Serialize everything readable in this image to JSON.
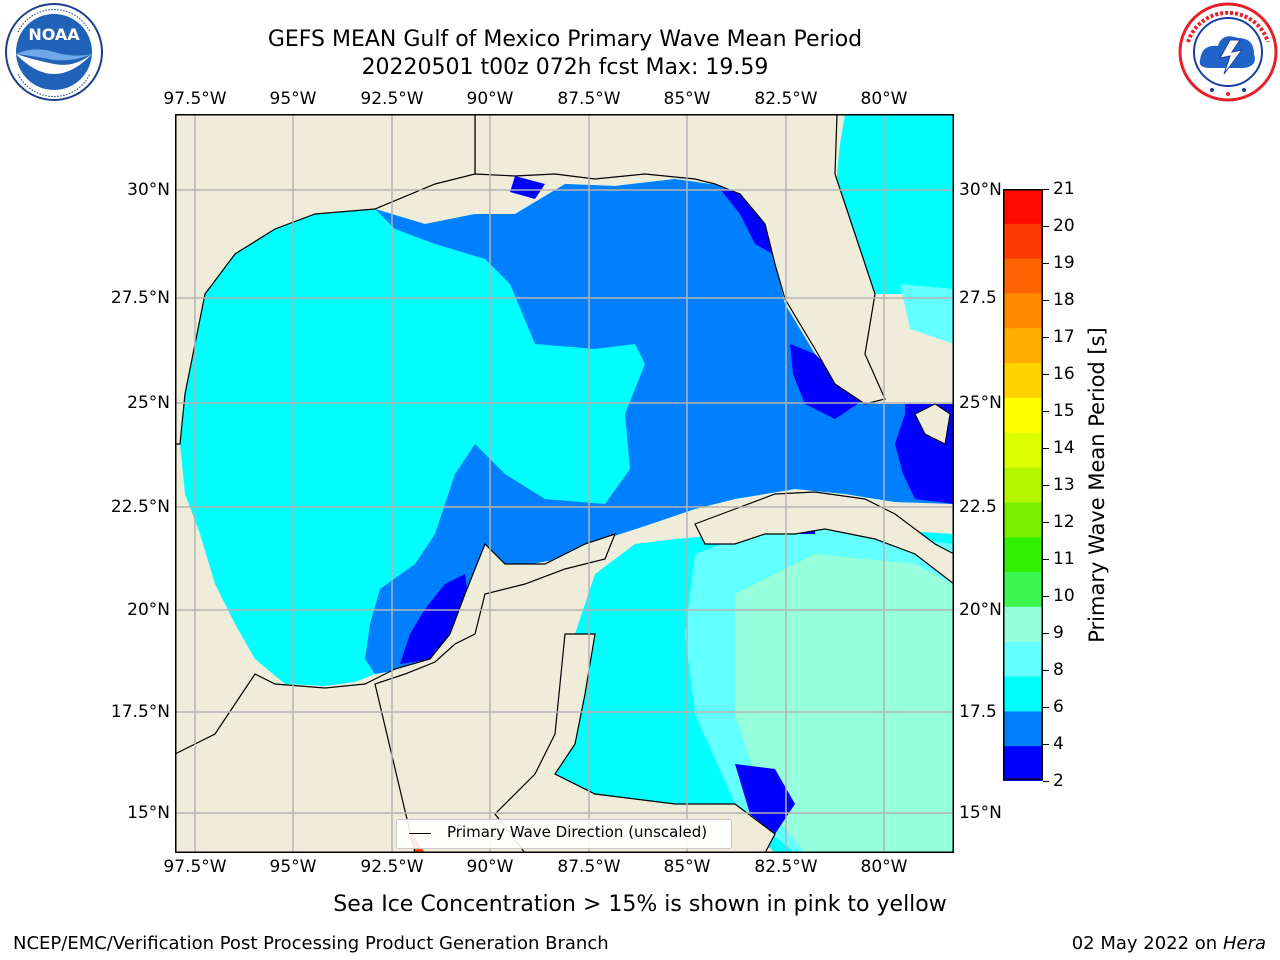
{
  "header": {
    "title_line1": "GEFS MEAN Gulf of Mexico Primary Wave Mean Period",
    "title_line2": "20220501 t00z 072h fcst   Max: 19.59"
  },
  "logos": {
    "left": {
      "name": "noaa-logo",
      "text": "NOAA",
      "ring_text": "NATIONAL OCEANIC AND ATMOSPHERIC ADMINISTRATION · U.S. DEPARTMENT OF COMMERCE"
    },
    "right": {
      "name": "nws-logo",
      "ring_text": "NATIONAL WEATHER SERVICE"
    }
  },
  "map": {
    "lon_ticks": [
      "97.5°W",
      "95°W",
      "92.5°W",
      "90°W",
      "87.5°W",
      "85°W",
      "82.5°W",
      "80°W"
    ],
    "lat_ticks_left": [
      "30°N",
      "27.5°N",
      "25°N",
      "22.5°N",
      "20°N",
      "17.5°N",
      "15°N"
    ],
    "lat_ticks_right": [
      "30°N",
      "27.5",
      "25°N",
      "22.5",
      "20°N",
      "17.5",
      "15°N"
    ],
    "extent": {
      "lon": [
        -98,
        -78.2
      ],
      "lat": [
        14,
        31.8
      ]
    },
    "colors": {
      "land": "#efedda",
      "grid": "#b4b4b4",
      "coast": "#000000",
      "arrow": "#ff0000"
    },
    "legend": {
      "label": "Primary Wave Direction (unscaled)"
    }
  },
  "colorbar": {
    "title": "Primary Wave Mean Period [s]",
    "labels": [
      "21",
      "20",
      "19",
      "18",
      "17",
      "16",
      "15",
      "14",
      "13",
      "12",
      "11",
      "10",
      "9",
      "8",
      "6",
      "4",
      "2"
    ],
    "colors": [
      "#ff0a00",
      "#ff3a00",
      "#ff6400",
      "#ff8a00",
      "#ffae00",
      "#ffd300",
      "#ffff00",
      "#dcff00",
      "#b4f500",
      "#78ee00",
      "#30f000",
      "#3cf650",
      "#96ffdc",
      "#64ffff",
      "#00ffff",
      "#0080ff",
      "#0000ff"
    ]
  },
  "footer": {
    "subtitle": "Sea Ice Concentration > 15% is shown in pink to yellow",
    "left": "NCEP/EMC/Verification Post Processing Product Generation Branch",
    "right_date": "02 May 2022 on",
    "right_machine": "Hera"
  }
}
